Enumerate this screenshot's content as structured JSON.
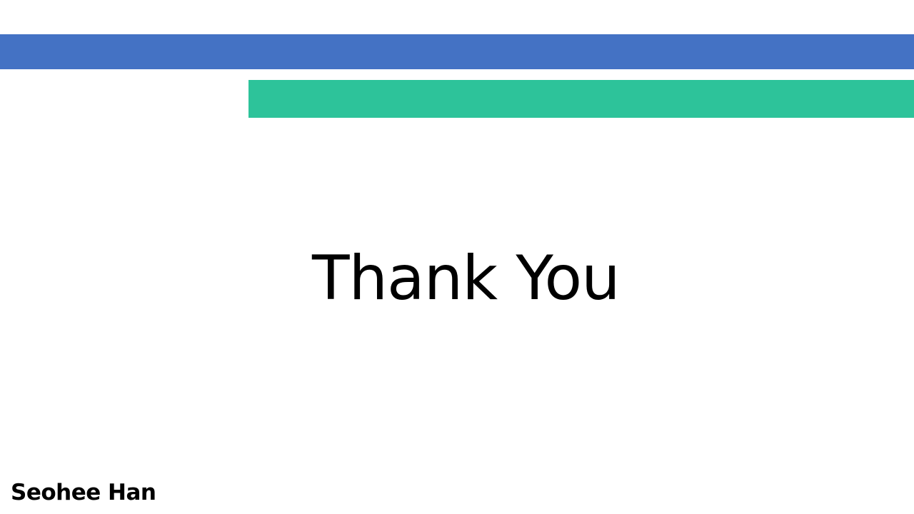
{
  "slide": {
    "title": "Thank You",
    "author": "Seohee Han"
  },
  "colors": {
    "band_blue": "#4472c4",
    "band_green": "#2dc39a",
    "background": "#ffffff",
    "text": "#000000"
  }
}
